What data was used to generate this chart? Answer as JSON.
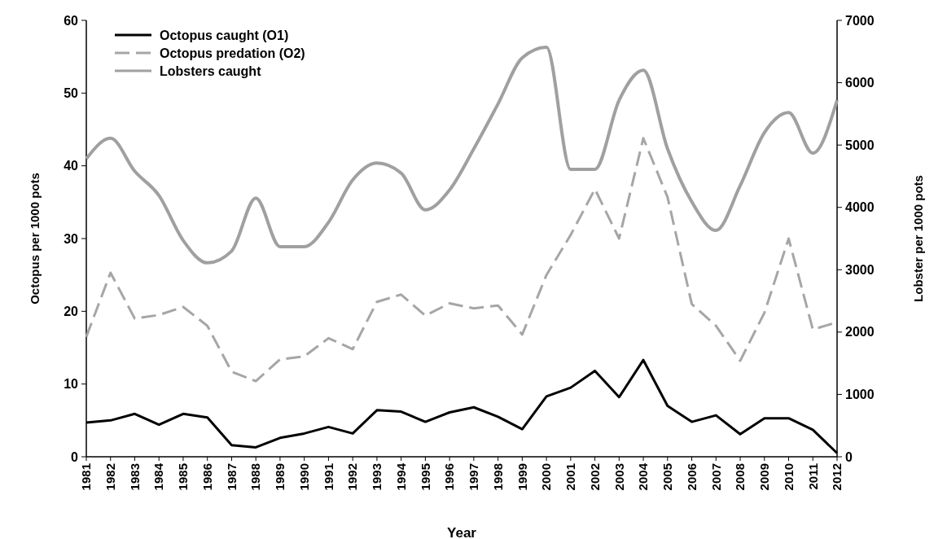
{
  "chart_data": {
    "type": "line",
    "xlabel": "Year",
    "ylabel": "Octopus per 1000 pots",
    "y2label": "Lobster per 1000 pots",
    "categories": [
      "1981",
      "1982",
      "1983",
      "1984",
      "1985",
      "1986",
      "1987",
      "1988",
      "1989",
      "1990",
      "1991",
      "1992",
      "1993",
      "1994",
      "1995",
      "1996",
      "1997",
      "1998",
      "1999",
      "2000",
      "2001",
      "2002",
      "2003",
      "2004",
      "2005",
      "2006",
      "2007",
      "2008",
      "2009",
      "2010",
      "2011",
      "2012"
    ],
    "series": [
      {
        "name": "Octopus caught (O1)",
        "color": "#000000",
        "line_style": "solid",
        "values": [
          4.7,
          5.0,
          5.9,
          4.4,
          5.9,
          5.4,
          1.6,
          1.3,
          2.6,
          3.2,
          4.1,
          3.2,
          6.4,
          6.2,
          4.8,
          6.1,
          6.8,
          5.5,
          3.8,
          8.3,
          9.5,
          11.8,
          8.2,
          13.3,
          7.0,
          4.8,
          5.7,
          3.1,
          5.3,
          5.3,
          3.7,
          0.5
        ]
      },
      {
        "name": "Octopus predation (O2)",
        "color": "#a6a6a6",
        "line_style": "dashed",
        "values": [
          16.5,
          25.3,
          19.0,
          19.5,
          20.6,
          18.0,
          11.7,
          10.4,
          13.4,
          13.8,
          16.3,
          14.8,
          21.3,
          22.3,
          19.4,
          21.1,
          20.4,
          20.8,
          16.8,
          25.0,
          30.5,
          36.8,
          30.0,
          43.8,
          35.7,
          21.0,
          18.0,
          13.2,
          19.8,
          30.0,
          17.5,
          18.5
        ]
      },
      {
        "name": "Lobsters caught",
        "color": "#a0a0a0",
        "line_style": "solid",
        "axis": "y2",
        "values": [
          4780,
          5110,
          4580,
          4190,
          3470,
          3110,
          3300,
          4150,
          3370,
          3370,
          3760,
          4440,
          4710,
          4550,
          3960,
          4280,
          4940,
          5660,
          6400,
          6570,
          4610,
          4610,
          5720,
          6200,
          4940,
          4090,
          3630,
          4350,
          5200,
          5520,
          4870,
          5720
        ]
      }
    ],
    "ylim": [
      0,
      60
    ],
    "yticks": [
      0,
      10,
      20,
      30,
      40,
      50,
      60
    ],
    "y2lim": [
      0,
      7000
    ],
    "y2ticks": [
      0,
      1000,
      2000,
      3000,
      4000,
      5000,
      6000,
      7000
    ],
    "legend": "top left",
    "grid": false,
    "marker": "none"
  }
}
